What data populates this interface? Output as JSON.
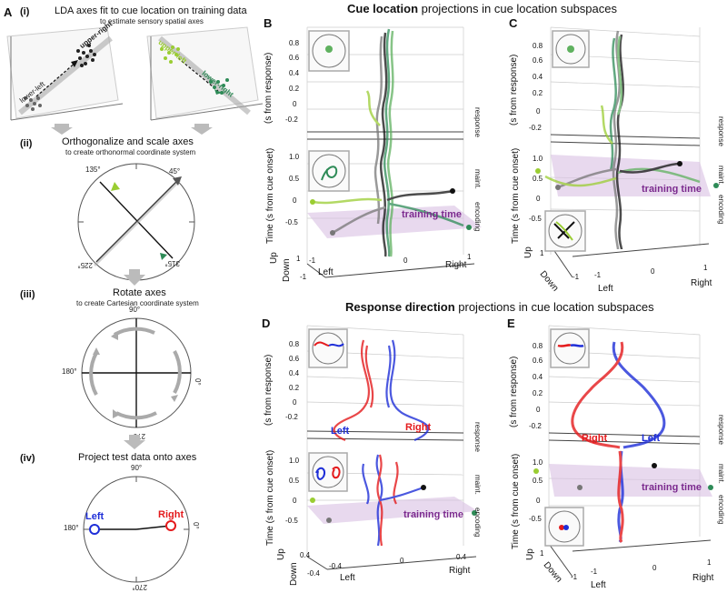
{
  "panel_a": {
    "letter": "A",
    "step_i": {
      "num": "(i)",
      "title": "LDA axes fit to cue location on training data",
      "subtitle": "to estimate sensory spatial axes",
      "labels": {
        "upper_right": "upper-right",
        "lower_left": "lower-left",
        "upper_left": "upper-left",
        "lower_right": "lower-right"
      }
    },
    "step_ii": {
      "num": "(ii)",
      "title": "Orthogonalize and scale axes",
      "subtitle": "to create orthonormal coordinate system",
      "angles": {
        "a45": "45°",
        "a135": "135°",
        "a225": "225°",
        "a315": "315°"
      }
    },
    "step_iii": {
      "num": "(iii)",
      "title": "Rotate axes",
      "subtitle": "to create Cartesian coordinate system",
      "angles": {
        "a90": "90°",
        "a0": "0°",
        "a180": "180°",
        "a270": "270°"
      }
    },
    "step_iv": {
      "num": "(iv)",
      "title": "Project test data onto axes",
      "angles": {
        "a90": "90°",
        "a0": "0°",
        "a180": "180°",
        "a270": "270°"
      },
      "left": "Left",
      "right": "Right"
    }
  },
  "headers": {
    "top_bold": "Cue location",
    "top_rest": "projections in cue location subspaces",
    "bottom_bold": "Response direction",
    "bottom_rest": "projections in cue location subspaces"
  },
  "common": {
    "time_response": "(s from response)",
    "time_cue": "Time (s from cue onset)",
    "response": "response",
    "maint": "maint.",
    "encoding": "encoding",
    "training_time": "training time",
    "left": "Left",
    "right": "Right",
    "up": "Up",
    "down": "Down"
  },
  "panels": {
    "B": {
      "letter": "B",
      "ticks_upper": [
        "0.8",
        "0.6",
        "0.4",
        "0.2",
        "0",
        "-0.2"
      ],
      "ticks_lower": [
        "1.0",
        "0.5",
        "0",
        "-0.5"
      ],
      "x_ticks": [
        "-1",
        "0",
        "1"
      ],
      "y_ticks": [
        "1",
        "-1"
      ]
    },
    "C": {
      "letter": "C",
      "ticks_upper": [
        "0.8",
        "0.6",
        "0.4",
        "0.2",
        "0",
        "-0.2"
      ],
      "ticks_lower": [
        "1.0",
        "0.5",
        "0",
        "-0.5"
      ],
      "x_ticks": [
        "-1",
        "0",
        "1"
      ],
      "y_ticks": [
        "1",
        "-1"
      ]
    },
    "D": {
      "letter": "D",
      "ticks_upper": [
        "0.8",
        "0.6",
        "0.4",
        "0.2",
        "0",
        "-0.2"
      ],
      "ticks_lower": [
        "1.0",
        "0.5",
        "0",
        "-0.5"
      ],
      "x_ticks": [
        "-0.4",
        "0",
        "0.4"
      ],
      "y_ticks": [
        "0.4",
        "-0.4"
      ]
    },
    "E": {
      "letter": "E",
      "ticks_upper": [
        "0.8",
        "0.6",
        "0.4",
        "0.2",
        "0",
        "-0.2"
      ],
      "ticks_lower": [
        "1.0",
        "0.5",
        "0",
        "-0.5"
      ],
      "x_ticks": [
        "-1",
        "0",
        "1"
      ],
      "y_ticks": [
        "1",
        "-1"
      ]
    }
  },
  "colors": {
    "red": "#e41a1c",
    "blue": "#1f2fd8",
    "purple": "#7b2a8e",
    "purple_fill": "#d9bfe3",
    "green_light": "#9acd32",
    "green_mid": "#5fb15f",
    "green_dark": "#2e8b57",
    "black": "#111111",
    "gray": "#777777"
  }
}
